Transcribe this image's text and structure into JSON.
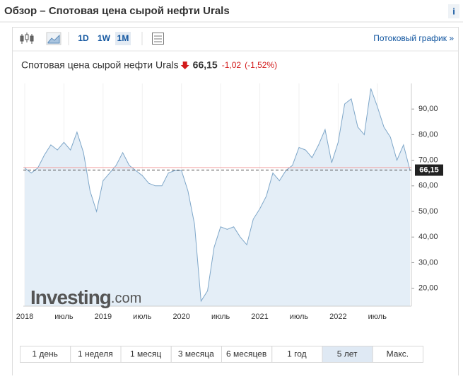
{
  "header": {
    "title": "Обзор – Спотовая цена сырой нефти Urals",
    "info": "i"
  },
  "toolbar": {
    "buttons": [
      "1D",
      "1W",
      "1M"
    ],
    "stream_link": "Потоковый график »"
  },
  "quote": {
    "name": "Спотовая цена сырой нефти Urals",
    "price": "66,15",
    "change": "-1,02",
    "change_pct": "(-1,52%)"
  },
  "periods": [
    "1 день",
    "1 неделя",
    "1 месяц",
    "3 месяца",
    "6 месяцев",
    "1 год",
    "5 лет",
    "Макс."
  ],
  "selected_period": "5 лет",
  "watermark": [
    "Investing",
    ".com"
  ],
  "chart_data": {
    "type": "area",
    "color": "#7fa7c9",
    "fill": "#e4eef7",
    "categories": [
      "2018",
      null,
      null,
      null,
      null,
      null,
      "июль",
      null,
      null,
      null,
      null,
      null,
      "2019",
      null,
      null,
      null,
      null,
      null,
      "июль",
      null,
      null,
      null,
      null,
      null,
      "2020",
      null,
      null,
      null,
      null,
      null,
      "июль",
      null,
      null,
      null,
      null,
      null,
      "2021",
      null,
      null,
      null,
      null,
      null,
      "июль",
      null,
      null,
      null,
      null,
      null,
      "2022",
      null,
      null,
      null,
      null,
      null,
      "июль",
      null,
      null,
      null,
      null,
      null
    ],
    "values": [
      67,
      65,
      67,
      72,
      76,
      74,
      77,
      74,
      81,
      73,
      58,
      50,
      62,
      65,
      68,
      73,
      68,
      66,
      64,
      61,
      60,
      60,
      65,
      66,
      66,
      58,
      45,
      15,
      19,
      36,
      44,
      43,
      44,
      40,
      37,
      47,
      51,
      56,
      65,
      62,
      66,
      68,
      75,
      74,
      71,
      76,
      82,
      69,
      77,
      92,
      94,
      83,
      80,
      98,
      91,
      83,
      79,
      70,
      76,
      66.15
    ],
    "ylim": [
      13,
      100
    ],
    "yticks": [
      {
        "value": 20,
        "label": "20,00"
      },
      {
        "value": 30,
        "label": "30,00"
      },
      {
        "value": 40,
        "label": "40,00"
      },
      {
        "value": 50,
        "label": "50,00"
      },
      {
        "value": 60,
        "label": "60,00"
      },
      {
        "value": 70,
        "label": "70,00"
      },
      {
        "value": 80,
        "label": "80,00"
      },
      {
        "value": 90,
        "label": "90,00"
      }
    ],
    "last_value": {
      "value": 66.15,
      "label": "66,15"
    },
    "reference_line": 67.17
  }
}
